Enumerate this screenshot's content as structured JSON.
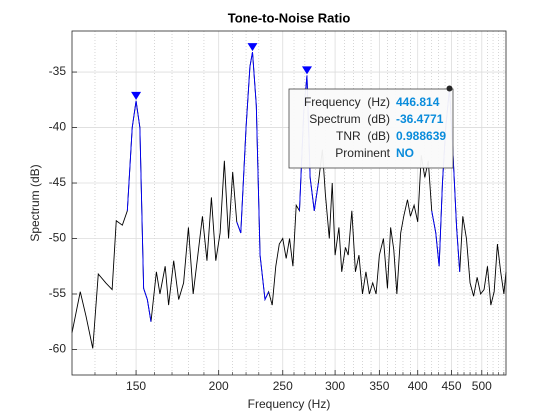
{
  "chart_data": {
    "type": "line",
    "title": "Tone-to-Noise Ratio",
    "xlabel": "Frequency (Hz)",
    "ylabel": "Spectrum (dB)",
    "xscale": "log",
    "xlim": [
      120,
      544
    ],
    "ylim": [
      -62.3,
      -31.3
    ],
    "xticks": [
      150,
      200,
      250,
      300,
      350,
      400,
      450,
      500
    ],
    "xminorticks": [
      130,
      140,
      160,
      170,
      180,
      190,
      210,
      220,
      230,
      240,
      260,
      270,
      280,
      290,
      310,
      320,
      330,
      340,
      360,
      370,
      380,
      390,
      410,
      420,
      430,
      440,
      460,
      470,
      480,
      490,
      510,
      520,
      530,
      540
    ],
    "yticks": [
      -60,
      -55,
      -50,
      -45,
      -40,
      -35
    ],
    "grid": true,
    "series": [
      {
        "color": "#000000",
        "x": [
          120,
          123.5,
          126,
          129,
          131.5,
          135,
          138,
          140,
          143,
          145.5,
          148,
          150,
          152,
          154,
          156,
          158,
          161,
          163,
          166,
          168,
          171,
          174,
          177,
          180,
          183,
          186,
          189,
          192,
          195,
          198,
          201,
          204,
          207,
          210,
          213,
          216,
          220,
          223,
          225,
          228,
          231,
          235,
          238,
          241,
          244,
          247,
          250,
          253,
          256,
          259,
          262,
          265,
          269,
          272,
          275,
          279,
          283,
          287,
          290,
          294,
          297,
          300,
          304,
          307,
          311,
          314,
          318,
          322,
          326,
          330,
          334,
          338,
          342,
          346,
          350,
          355,
          360,
          364,
          368,
          372,
          377,
          381,
          386,
          390,
          395,
          400,
          405,
          410,
          415,
          420,
          426,
          431,
          436,
          441,
          446.814,
          452,
          458,
          463,
          468,
          474,
          480,
          486,
          492,
          498,
          504,
          510,
          516,
          522,
          528,
          534,
          540,
          544
        ],
        "values": [
          -58.5,
          -54.8,
          -57,
          -59.9,
          -53.2,
          -54,
          -54.6,
          -48.4,
          -48.8,
          -47.5,
          -40,
          -37.6,
          -40,
          -54.5,
          -55.5,
          -57.5,
          -53,
          -55,
          -52.5,
          -56,
          -52,
          -55.5,
          -54,
          -49,
          -55,
          -51.5,
          -48,
          -52,
          -46.3,
          -52,
          -49.5,
          -43,
          -50,
          -44,
          -48.5,
          -49.5,
          -40,
          -34.5,
          -33.2,
          -38,
          -51.5,
          -55.5,
          -54.8,
          -56,
          -52.5,
          -50.5,
          -50,
          -51.8,
          -50,
          -52.5,
          -47,
          -47.5,
          -38.5,
          -35.3,
          -44.5,
          -47.5,
          -45,
          -42,
          -46,
          -50,
          -45,
          -51.5,
          -49,
          -53,
          -50.8,
          -51.5,
          -47.5,
          -53,
          -51.5,
          -55,
          -53,
          -55,
          -54,
          -55,
          -51.5,
          -50,
          -54.5,
          -49,
          -51,
          -55,
          -49.5,
          -48,
          -46.5,
          -48,
          -47,
          -48.5,
          -42.5,
          -44.5,
          -43,
          -47.5,
          -49.5,
          -52.5,
          -45,
          -40,
          -36.4771,
          -42,
          -49,
          -53,
          -48,
          -50,
          -54,
          -55.2,
          -53.5,
          -55,
          -54.6,
          -52.5,
          -56,
          -54.8,
          -50.5,
          -53,
          -55,
          -53
        ]
      },
      {
        "color": "#0000ff",
        "x": [
          145.5,
          148,
          150,
          152,
          154,
          156,
          158
        ],
        "values": [
          -47.5,
          -40,
          -37.6,
          -40,
          -54.5,
          -55.5,
          -57.5
        ]
      },
      {
        "color": "#0000ff",
        "x": [
          213,
          216,
          220,
          223,
          225,
          228,
          231,
          235,
          238
        ],
        "values": [
          -48.5,
          -49.5,
          -40,
          -34.5,
          -33.2,
          -38,
          -51.5,
          -55.5,
          -54.8
        ]
      },
      {
        "color": "#0000ff",
        "x": [
          265,
          269,
          272,
          275,
          279,
          283
        ],
        "values": [
          -47.5,
          -38.5,
          -35.3,
          -44.5,
          -47.5,
          -45
        ]
      },
      {
        "color": "#0000ff",
        "x": [
          420,
          426,
          431,
          436,
          441,
          446.814,
          452,
          458,
          463
        ],
        "values": [
          -47.5,
          -49.5,
          -52.5,
          -45,
          -40,
          -36.4771,
          -42,
          -49,
          -53
        ]
      }
    ],
    "peaks": {
      "color": "#0000ff",
      "x": [
        150,
        225,
        272
      ],
      "y": [
        -37.6,
        -33.2,
        -35.3
      ]
    },
    "datatip": {
      "rows": [
        {
          "label": "Frequency  (Hz)",
          "value": 446.814
        },
        {
          "label": "Spectrum  (dB)",
          "value": -36.4771
        },
        {
          "label": "TNR  (dB)",
          "value": 0.988639
        },
        {
          "label": "Prominent",
          "value": "NO"
        }
      ]
    }
  }
}
